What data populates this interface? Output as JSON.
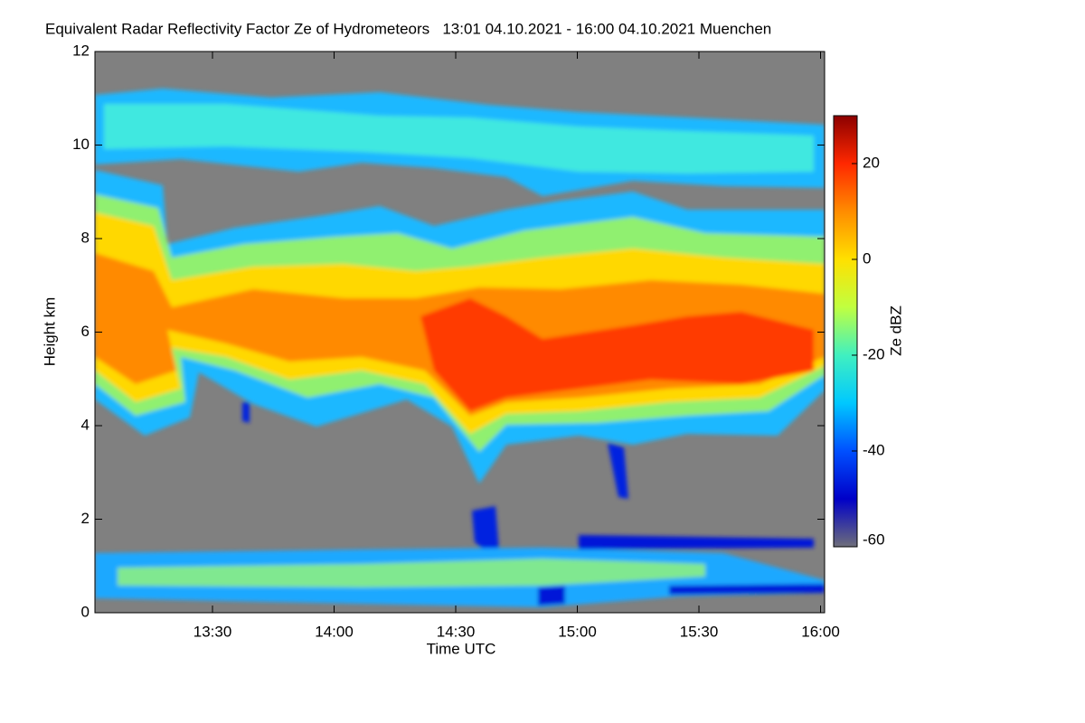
{
  "chart_data": {
    "type": "heatmap",
    "title": "Equivalent Radar Reflectivity Factor Ze of Hydrometeors   13:01 04.10.2021 - 16:00 04.10.2021 Muenchen",
    "xlabel": "Time UTC",
    "ylabel": "Height km",
    "colorbar_label": "Ze dBZ",
    "xlim": [
      781,
      961
    ],
    "xticks": [
      {
        "value": 810,
        "label": "13:30"
      },
      {
        "value": 840,
        "label": "14:00"
      },
      {
        "value": 870,
        "label": "14:30"
      },
      {
        "value": 900,
        "label": "15:00"
      },
      {
        "value": 930,
        "label": "15:30"
      },
      {
        "value": 960,
        "label": "16:00"
      }
    ],
    "ylim": [
      0,
      12
    ],
    "yticks": [
      0,
      2,
      4,
      6,
      8,
      10,
      12
    ],
    "clim": [
      -60,
      30
    ],
    "cticks": [
      -60,
      -40,
      -20,
      0,
      20
    ],
    "colorscale": [
      "#6e6e7a",
      "#0000c8",
      "#0050ff",
      "#00c8ff",
      "#40f0c0",
      "#c0ff40",
      "#ffe000",
      "#ff8c00",
      "#ff2800",
      "#8c0000"
    ],
    "background": "#808080"
  }
}
